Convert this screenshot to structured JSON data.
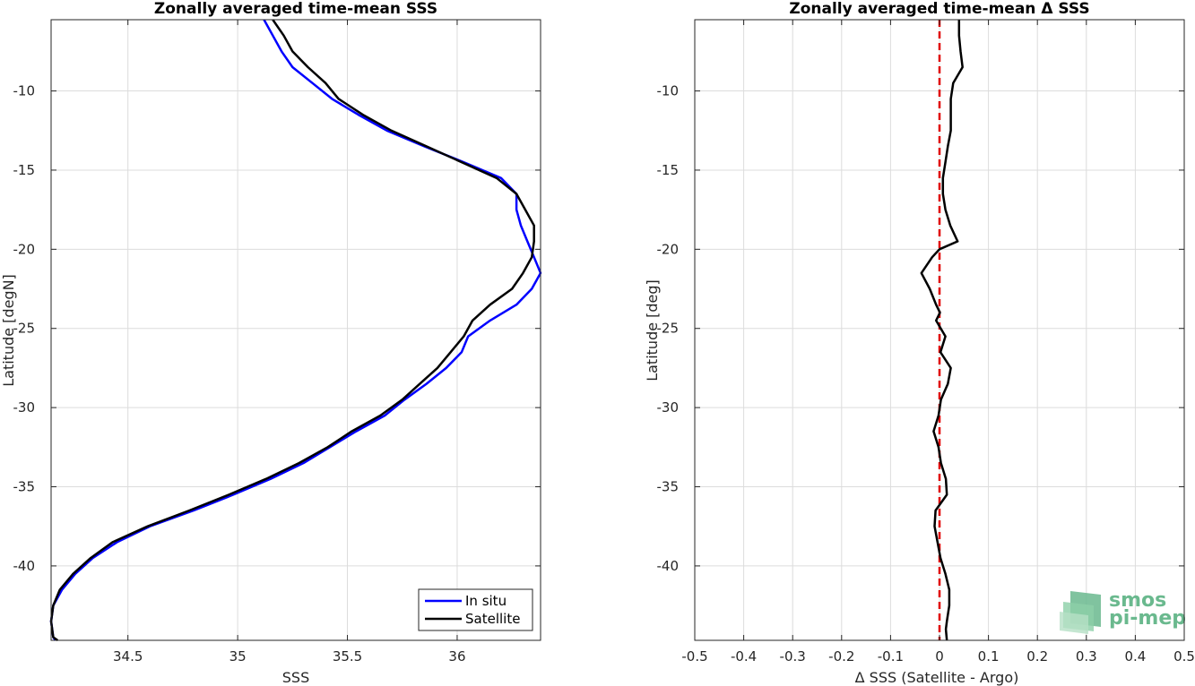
{
  "chart_data": [
    {
      "type": "line",
      "title": "Zonally averaged time-mean SSS",
      "xlabel": "SSS",
      "ylabel": "Latitude [degN]",
      "xlim": [
        34.15,
        36.38
      ],
      "ylim": [
        -44.7,
        -5.5
      ],
      "xticks": [
        34.5,
        35,
        35.5,
        36
      ],
      "xtick_labels": [
        "34.5",
        "35",
        "35.5",
        "36"
      ],
      "yticks": [
        -40,
        -35,
        -30,
        -25,
        -20,
        -15,
        -10
      ],
      "ytick_labels": [
        "-40",
        "-35",
        "-30",
        "-25",
        "-20",
        "-15",
        "-10"
      ],
      "grid": true,
      "legend_position": "bottom-right",
      "series": [
        {
          "name": "In situ",
          "color": "#0000ff",
          "x": [
            35.12,
            35.16,
            35.2,
            35.25,
            35.34,
            35.43,
            35.55,
            35.68,
            35.85,
            36.03,
            36.2,
            36.27,
            36.27,
            36.29,
            36.32,
            36.35,
            36.38,
            36.34,
            36.27,
            36.15,
            36.05,
            36.02,
            35.95,
            35.86,
            35.76,
            35.67,
            35.54,
            35.42,
            35.3,
            35.15,
            34.98,
            34.8,
            34.6,
            34.45,
            34.34,
            34.26,
            34.2,
            34.16,
            34.15,
            34.16,
            34.17
          ],
          "y": [
            -5.5,
            -6.5,
            -7.5,
            -8.5,
            -9.5,
            -10.5,
            -11.5,
            -12.5,
            -13.5,
            -14.5,
            -15.5,
            -16.5,
            -17.5,
            -18.5,
            -19.5,
            -20.5,
            -21.5,
            -22.5,
            -23.5,
            -24.5,
            -25.5,
            -26.5,
            -27.5,
            -28.5,
            -29.5,
            -30.5,
            -31.5,
            -32.5,
            -33.5,
            -34.5,
            -35.5,
            -36.5,
            -37.5,
            -38.5,
            -39.5,
            -40.5,
            -41.5,
            -42.5,
            -43.5,
            -44.5,
            -44.7
          ]
        },
        {
          "name": "Satellite",
          "color": "#000000",
          "x": [
            35.16,
            35.21,
            35.25,
            35.32,
            35.4,
            35.46,
            35.57,
            35.7,
            35.86,
            36.02,
            36.18,
            36.27,
            36.31,
            36.35,
            36.35,
            36.34,
            36.3,
            36.25,
            36.15,
            36.07,
            36.03,
            35.97,
            35.91,
            35.83,
            35.75,
            35.65,
            35.52,
            35.41,
            35.28,
            35.13,
            34.96,
            34.78,
            34.59,
            34.43,
            34.33,
            34.25,
            34.19,
            34.16,
            34.15,
            34.16,
            34.18
          ],
          "y": [
            -5.5,
            -6.5,
            -7.5,
            -8.5,
            -9.5,
            -10.5,
            -11.5,
            -12.5,
            -13.5,
            -14.5,
            -15.5,
            -16.5,
            -17.5,
            -18.5,
            -19.5,
            -20.5,
            -21.5,
            -22.5,
            -23.5,
            -24.5,
            -25.5,
            -26.5,
            -27.5,
            -28.5,
            -29.5,
            -30.5,
            -31.5,
            -32.5,
            -33.5,
            -34.5,
            -35.5,
            -36.5,
            -37.5,
            -38.5,
            -39.5,
            -40.5,
            -41.5,
            -42.5,
            -43.5,
            -44.5,
            -44.7
          ]
        }
      ]
    },
    {
      "type": "line",
      "title": "Zonally averaged time-mean Δ SSS",
      "xlabel": "Δ SSS (Satellite - Argo)",
      "ylabel": "Latitude [deg]",
      "xlim": [
        -0.5,
        0.5
      ],
      "ylim": [
        -44.7,
        -5.5
      ],
      "xticks": [
        -0.5,
        -0.4,
        -0.3,
        -0.2,
        -0.1,
        0,
        0.1,
        0.2,
        0.3,
        0.4,
        0.5
      ],
      "xtick_labels": [
        "-0.5",
        "-0.4",
        "-0.3",
        "-0.2",
        "-0.1",
        "0",
        "0.1",
        "0.2",
        "0.3",
        "0.4",
        "0.5"
      ],
      "yticks": [
        -40,
        -35,
        -30,
        -25,
        -20,
        -15,
        -10
      ],
      "ytick_labels": [
        "-40",
        "-35",
        "-30",
        "-25",
        "-20",
        "-15",
        "-10"
      ],
      "grid": true,
      "reference_line": {
        "x": 0,
        "color": "#e00000",
        "style": "dashed"
      },
      "series": [
        {
          "name": "",
          "color": "#000000",
          "x": [
            0.04,
            0.04,
            0.043,
            0.047,
            0.028,
            0.023,
            0.023,
            0.023,
            0.017,
            0.012,
            0.007,
            0.007,
            0.012,
            0.022,
            0.037,
            0.0,
            -0.015,
            -0.037,
            -0.02,
            -0.007,
            0.001,
            -0.007,
            0.012,
            0.002,
            0.023,
            0.017,
            0.003,
            -0.002,
            -0.012,
            -0.002,
            0.003,
            0.013,
            0.015,
            -0.008,
            -0.01,
            -0.004,
            0.002,
            0.012,
            0.02,
            0.02,
            0.015,
            0.013,
            0.015
          ],
          "y": [
            -5.5,
            -6.5,
            -7.5,
            -8.5,
            -9.5,
            -10.5,
            -11.5,
            -12.5,
            -13.5,
            -14.5,
            -15.5,
            -16.5,
            -17.5,
            -18.5,
            -19.5,
            -20.0,
            -20.5,
            -21.5,
            -22.5,
            -23.5,
            -24.0,
            -24.5,
            -25.5,
            -26.5,
            -27.5,
            -28.5,
            -29.5,
            -30.5,
            -31.5,
            -32.5,
            -33.5,
            -34.5,
            -35.5,
            -36.5,
            -37.5,
            -38.5,
            -39.5,
            -40.5,
            -41.5,
            -42.5,
            -43.5,
            -44.0,
            -44.7
          ]
        }
      ]
    }
  ],
  "legend": {
    "items": [
      "In situ",
      "Satellite"
    ]
  },
  "logo": {
    "line1": "smos",
    "line2": "pi-mep",
    "color": "#6ab98e"
  }
}
